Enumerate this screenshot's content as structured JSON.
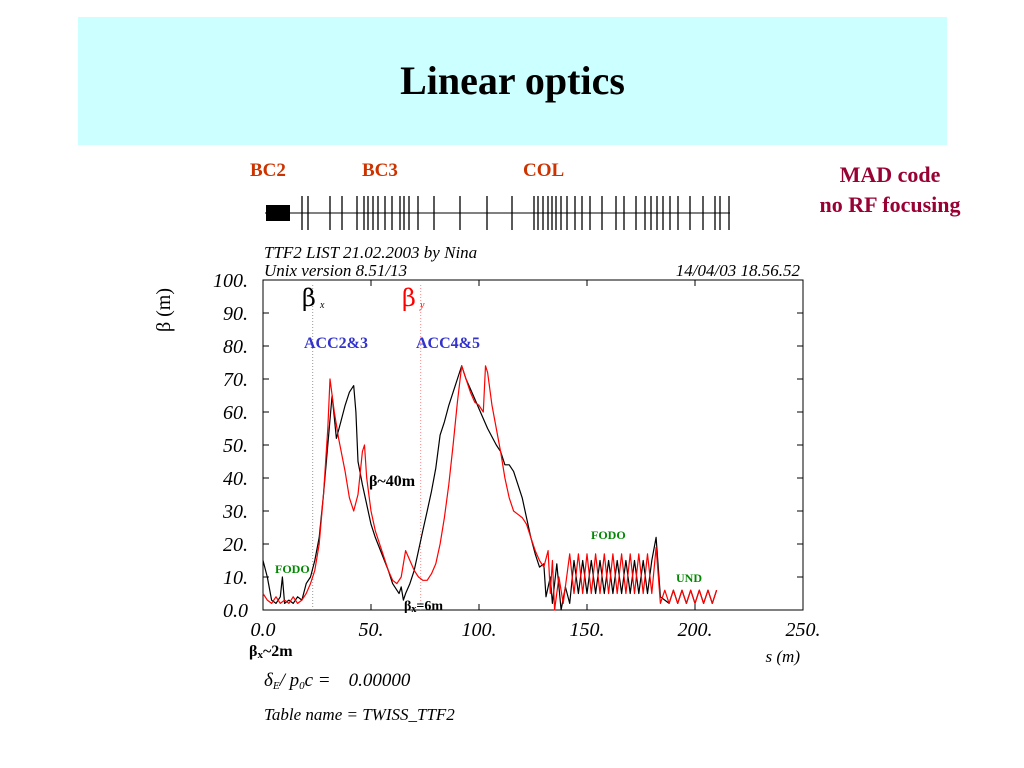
{
  "title": "Linear optics",
  "sections": {
    "bc2": "BC2",
    "bc3": "BC3",
    "col": "COL"
  },
  "note": {
    "line1": "MAD code",
    "line2": "no RF focusing"
  },
  "header": {
    "line1": "TTF2 LIST 21.02.2003 by Nina",
    "line2": "Unix version 8.51/13",
    "timestamp": "14/04/03  18.56.52"
  },
  "footer": {
    "delta_label": "δ",
    "delta_sub": "E",
    "delta_rest": "/ p",
    "delta_sub2": "0",
    "delta_c": "c  =",
    "delta_value": "0.00000",
    "table_name": "Table name = TWISS_TTF2"
  },
  "annotations": {
    "acc23": "ACC2&3",
    "acc45": "ACC4&5",
    "fodo_left": "FODO",
    "fodo_right": "FODO",
    "und": "UND",
    "beta40": "β~40m",
    "betax6_b": "β",
    "betax6_s": "x",
    "betax6_r": "=6m",
    "betax2_b": "β",
    "betax2_s": "x",
    "betax2_r": "~2m",
    "legend_bx": "β",
    "legend_bx_sub": "x",
    "legend_by": "β",
    "legend_by_sub": "y"
  },
  "colors": {
    "beta_x": "#000000",
    "beta_y": "#ff0000",
    "acc_label": "#3333cc",
    "fodo_label": "#008800",
    "section_label": "#cc3300",
    "note": "#990033",
    "title_bg": "#ccffff"
  },
  "chart_data": {
    "type": "line",
    "xlabel": "s (m)",
    "ylabel": "β (m)",
    "xlim": [
      0,
      250
    ],
    "ylim": [
      0,
      100
    ],
    "xticks": [
      "0.0",
      "50.",
      "100.",
      "150.",
      "200.",
      "250."
    ],
    "yticks": [
      "0.0",
      "10.",
      "20.",
      "30.",
      "40.",
      "50.",
      "60.",
      "70.",
      "80.",
      "90.",
      "100."
    ],
    "xtick_values": [
      0,
      50,
      100,
      150,
      200,
      250
    ],
    "ytick_values": [
      0,
      10,
      20,
      30,
      40,
      50,
      60,
      70,
      80,
      90,
      100
    ],
    "vlines": [
      23,
      73
    ],
    "series": [
      {
        "name": "βx",
        "color": "#000000",
        "points": [
          [
            0,
            15
          ],
          [
            2,
            10
          ],
          [
            4,
            3
          ],
          [
            6,
            2
          ],
          [
            8,
            4
          ],
          [
            9,
            10
          ],
          [
            10,
            2
          ],
          [
            12,
            3
          ],
          [
            14,
            2
          ],
          [
            16,
            4
          ],
          [
            18,
            3
          ],
          [
            20,
            8
          ],
          [
            22,
            10
          ],
          [
            24,
            15
          ],
          [
            26,
            22
          ],
          [
            28,
            35
          ],
          [
            30,
            50
          ],
          [
            32,
            65
          ],
          [
            34,
            52
          ],
          [
            36,
            57
          ],
          [
            38,
            62
          ],
          [
            40,
            66
          ],
          [
            42,
            68
          ],
          [
            43,
            60
          ],
          [
            44,
            45
          ],
          [
            46,
            38
          ],
          [
            48,
            32
          ],
          [
            50,
            26
          ],
          [
            52,
            22
          ],
          [
            55,
            17
          ],
          [
            58,
            12
          ],
          [
            60,
            8
          ],
          [
            62,
            6
          ],
          [
            63,
            5
          ],
          [
            64,
            7
          ],
          [
            65,
            3
          ],
          [
            66,
            5
          ],
          [
            68,
            8
          ],
          [
            70,
            12
          ],
          [
            72,
            18
          ],
          [
            74,
            24
          ],
          [
            76,
            30
          ],
          [
            78,
            36
          ],
          [
            80,
            43
          ],
          [
            82,
            53
          ],
          [
            84,
            57
          ],
          [
            86,
            62
          ],
          [
            88,
            66
          ],
          [
            90,
            70
          ],
          [
            92,
            74
          ],
          [
            94,
            70
          ],
          [
            96,
            67
          ],
          [
            98,
            64
          ],
          [
            100,
            61
          ],
          [
            104,
            55
          ],
          [
            108,
            50
          ],
          [
            110,
            48
          ],
          [
            112,
            44
          ],
          [
            114,
            44
          ],
          [
            116,
            42
          ],
          [
            118,
            38
          ],
          [
            120,
            34
          ],
          [
            122,
            28
          ],
          [
            124,
            22
          ],
          [
            126,
            17
          ],
          [
            128,
            13
          ],
          [
            130,
            14
          ],
          [
            131,
            4
          ],
          [
            133,
            10
          ],
          [
            134,
            2
          ],
          [
            136,
            14
          ],
          [
            138,
            0
          ],
          [
            140,
            7
          ],
          [
            142,
            2
          ],
          [
            144,
            15
          ],
          [
            146,
            5
          ],
          [
            148,
            15
          ],
          [
            150,
            5
          ],
          [
            152,
            15
          ],
          [
            154,
            5
          ],
          [
            156,
            15
          ],
          [
            158,
            5
          ],
          [
            160,
            15
          ],
          [
            162,
            5
          ],
          [
            164,
            15
          ],
          [
            166,
            5
          ],
          [
            168,
            15
          ],
          [
            170,
            5
          ],
          [
            172,
            15
          ],
          [
            174,
            5
          ],
          [
            176,
            15
          ],
          [
            178,
            5
          ],
          [
            180,
            15
          ],
          [
            182,
            22
          ],
          [
            184,
            4
          ],
          [
            186,
            3
          ],
          [
            188,
            2
          ],
          [
            190,
            6
          ],
          [
            192,
            2
          ],
          [
            194,
            6
          ],
          [
            196,
            2
          ],
          [
            198,
            6
          ],
          [
            200,
            2
          ],
          [
            202,
            6
          ],
          [
            204,
            2
          ],
          [
            206,
            6
          ],
          [
            208,
            2
          ],
          [
            210,
            6
          ]
        ]
      },
      {
        "name": "βy",
        "color": "#ff0000",
        "points": [
          [
            0,
            5
          ],
          [
            2,
            3
          ],
          [
            4,
            2
          ],
          [
            6,
            4
          ],
          [
            8,
            2
          ],
          [
            10,
            3
          ],
          [
            12,
            2
          ],
          [
            14,
            4
          ],
          [
            16,
            2
          ],
          [
            18,
            3
          ],
          [
            20,
            5
          ],
          [
            22,
            8
          ],
          [
            24,
            12
          ],
          [
            26,
            20
          ],
          [
            28,
            35
          ],
          [
            30,
            55
          ],
          [
            31,
            70
          ],
          [
            33,
            60
          ],
          [
            35,
            52
          ],
          [
            38,
            42
          ],
          [
            40,
            34
          ],
          [
            42,
            30
          ],
          [
            44,
            35
          ],
          [
            46,
            48
          ],
          [
            47,
            50
          ],
          [
            48,
            40
          ],
          [
            50,
            30
          ],
          [
            52,
            24
          ],
          [
            55,
            18
          ],
          [
            58,
            12
          ],
          [
            60,
            9
          ],
          [
            62,
            8
          ],
          [
            64,
            10
          ],
          [
            66,
            18
          ],
          [
            68,
            15
          ],
          [
            70,
            12
          ],
          [
            72,
            10
          ],
          [
            74,
            9
          ],
          [
            76,
            9
          ],
          [
            78,
            11
          ],
          [
            80,
            14
          ],
          [
            82,
            20
          ],
          [
            84,
            28
          ],
          [
            86,
            38
          ],
          [
            88,
            50
          ],
          [
            90,
            63
          ],
          [
            92,
            74
          ],
          [
            94,
            70
          ],
          [
            96,
            66
          ],
          [
            98,
            63
          ],
          [
            100,
            62
          ],
          [
            102,
            60
          ],
          [
            103,
            74
          ],
          [
            104,
            72
          ],
          [
            106,
            62
          ],
          [
            108,
            55
          ],
          [
            110,
            48
          ],
          [
            112,
            40
          ],
          [
            114,
            34
          ],
          [
            116,
            30
          ],
          [
            118,
            29
          ],
          [
            120,
            28
          ],
          [
            122,
            26
          ],
          [
            124,
            22
          ],
          [
            126,
            18
          ],
          [
            128,
            15
          ],
          [
            130,
            13
          ],
          [
            132,
            18
          ],
          [
            133,
            5
          ],
          [
            134,
            15
          ],
          [
            135,
            0
          ],
          [
            137,
            10
          ],
          [
            139,
            2
          ],
          [
            142,
            17
          ],
          [
            144,
            5
          ],
          [
            146,
            17
          ],
          [
            148,
            5
          ],
          [
            150,
            17
          ],
          [
            152,
            5
          ],
          [
            154,
            17
          ],
          [
            156,
            5
          ],
          [
            158,
            17
          ],
          [
            160,
            5
          ],
          [
            162,
            17
          ],
          [
            164,
            5
          ],
          [
            166,
            17
          ],
          [
            168,
            5
          ],
          [
            170,
            17
          ],
          [
            172,
            5
          ],
          [
            174,
            17
          ],
          [
            176,
            5
          ],
          [
            178,
            17
          ],
          [
            180,
            5
          ],
          [
            182,
            19
          ],
          [
            184,
            2
          ],
          [
            186,
            6
          ],
          [
            188,
            2
          ],
          [
            190,
            6
          ],
          [
            192,
            2
          ],
          [
            194,
            6
          ],
          [
            196,
            2
          ],
          [
            198,
            6
          ],
          [
            200,
            2
          ],
          [
            202,
            6
          ],
          [
            204,
            2
          ],
          [
            206,
            6
          ],
          [
            208,
            2
          ],
          [
            210,
            6
          ]
        ]
      }
    ]
  }
}
